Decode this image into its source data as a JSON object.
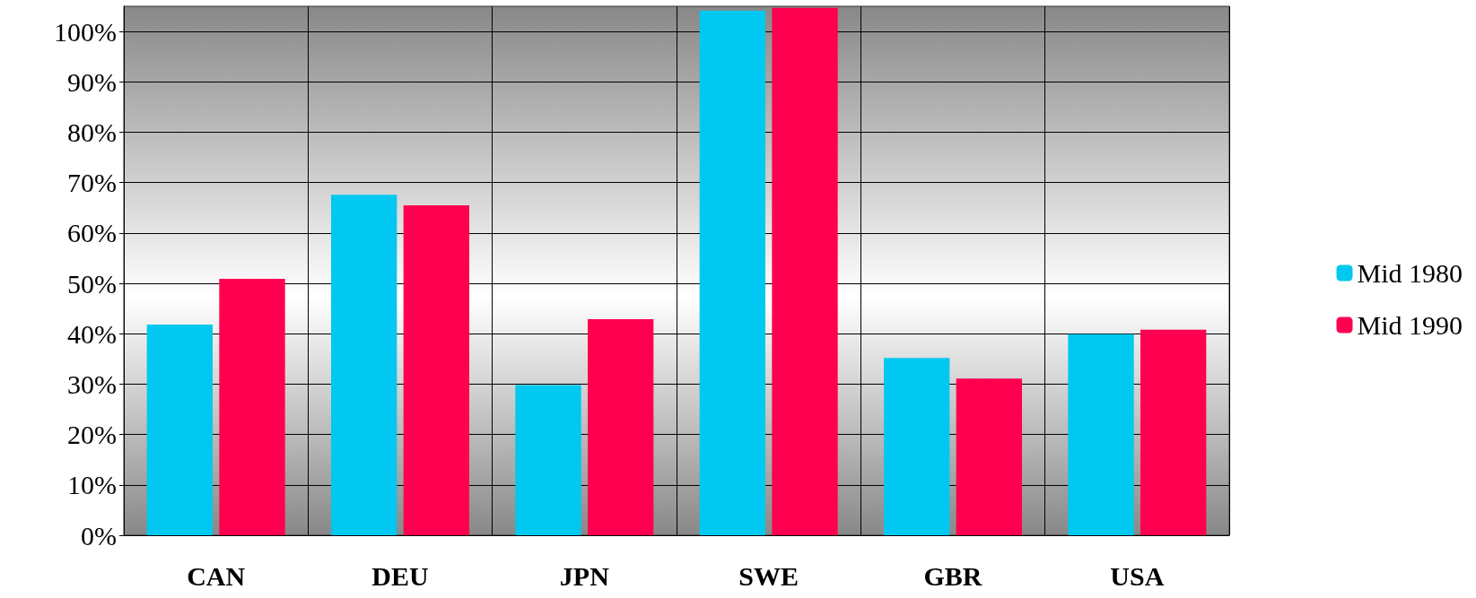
{
  "chart_data": {
    "type": "bar",
    "categories": [
      "CAN",
      "DEU",
      "JPN",
      "SWE",
      "GBR",
      "USA"
    ],
    "series": [
      {
        "name": "Mid 1980",
        "color": "#00c8f0",
        "values": [
          41.8,
          67.6,
          29.8,
          104.1,
          35.2,
          39.9
        ]
      },
      {
        "name": "Mid 1990",
        "color": "#ff0050",
        "values": [
          50.9,
          65.5,
          42.9,
          104.7,
          31.1,
          40.8
        ]
      }
    ],
    "ylim": [
      0,
      105
    ],
    "yticks": [
      {
        "value": 0,
        "label": "0%"
      },
      {
        "value": 10,
        "label": "10%"
      },
      {
        "value": 20,
        "label": "20%"
      },
      {
        "value": 30,
        "label": "30%"
      },
      {
        "value": 40,
        "label": "40%"
      },
      {
        "value": 50,
        "label": "50%"
      },
      {
        "value": 60,
        "label": "60%"
      },
      {
        "value": 70,
        "label": "70%"
      },
      {
        "value": 80,
        "label": "80%"
      },
      {
        "value": 90,
        "label": "90%"
      },
      {
        "value": 100,
        "label": "100%"
      }
    ],
    "grid": true,
    "legend": "right"
  }
}
